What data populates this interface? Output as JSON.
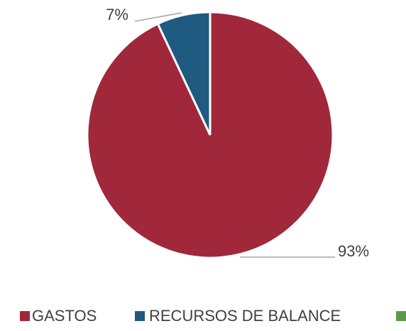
{
  "chart_data": {
    "type": "pie",
    "categories": [
      "GASTOS",
      "RECURSOS DE BALANCE"
    ],
    "values": [
      93,
      7
    ],
    "value_labels": [
      "93%",
      "7%"
    ],
    "colors": [
      "#a0283a",
      "#1f5a80"
    ],
    "legend": "bottom"
  }
}
